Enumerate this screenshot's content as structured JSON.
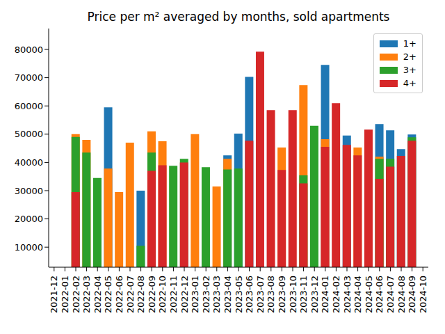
{
  "chart_data": {
    "type": "bar",
    "title": "Price per m² averaged by months, sold apartments",
    "categories": [
      "2021-12",
      "2022-01",
      "2022-02",
      "2022-03",
      "2022-04",
      "2022-05",
      "2022-06",
      "2022-07",
      "2022-08",
      "2022-09",
      "2022-10",
      "2022-11",
      "2022-12",
      "2023-01",
      "2023-02",
      "2023-03",
      "2023-04",
      "2023-05",
      "2023-06",
      "2023-07",
      "2023-08",
      "2023-09",
      "2023-10",
      "2023-11",
      "2023-12",
      "2024-01",
      "2024-02",
      "2024-03",
      "2024-04",
      "2024-05",
      "2024-06",
      "2024-07",
      "2024-08",
      "2024-09",
      "2024-10"
    ],
    "series": [
      {
        "name": "1+",
        "color": "#1f77b4",
        "values": [
          null,
          null,
          null,
          null,
          null,
          59500,
          null,
          null,
          30000,
          null,
          null,
          null,
          null,
          null,
          null,
          null,
          42500,
          50200,
          70300,
          null,
          null,
          null,
          null,
          null,
          null,
          74500,
          null,
          49500,
          null,
          null,
          53600,
          51400,
          44700,
          49900,
          null
        ]
      },
      {
        "name": "2+",
        "color": "#ff7f0e",
        "values": [
          null,
          null,
          50000,
          48000,
          null,
          37800,
          29500,
          47000,
          null,
          51000,
          47500,
          null,
          null,
          50000,
          null,
          31500,
          41300,
          null,
          null,
          null,
          null,
          45300,
          null,
          67400,
          null,
          48200,
          null,
          null,
          45300,
          null,
          42000,
          null,
          null,
          null,
          null
        ]
      },
      {
        "name": "3+",
        "color": "#2ca02c",
        "values": [
          null,
          null,
          49000,
          43500,
          34500,
          null,
          null,
          null,
          10500,
          43500,
          null,
          38800,
          41300,
          null,
          38300,
          null,
          37500,
          37800,
          null,
          null,
          null,
          null,
          null,
          35400,
          53000,
          null,
          null,
          null,
          null,
          null,
          41300,
          41300,
          null,
          48900,
          null
        ]
      },
      {
        "name": "4+",
        "color": "#d62728",
        "values": [
          null,
          null,
          29500,
          null,
          null,
          null,
          null,
          null,
          null,
          37000,
          39000,
          null,
          40000,
          null,
          null,
          null,
          null,
          null,
          47700,
          79200,
          58500,
          37300,
          58500,
          32600,
          null,
          45500,
          61000,
          46200,
          42500,
          51600,
          34200,
          38500,
          42300,
          47700,
          null
        ]
      }
    ],
    "ylim": [
      2900,
      87400
    ],
    "yticks": [
      10000,
      20000,
      30000,
      40000,
      50000,
      60000,
      70000,
      80000
    ],
    "grid": false,
    "legend": "upper right"
  }
}
